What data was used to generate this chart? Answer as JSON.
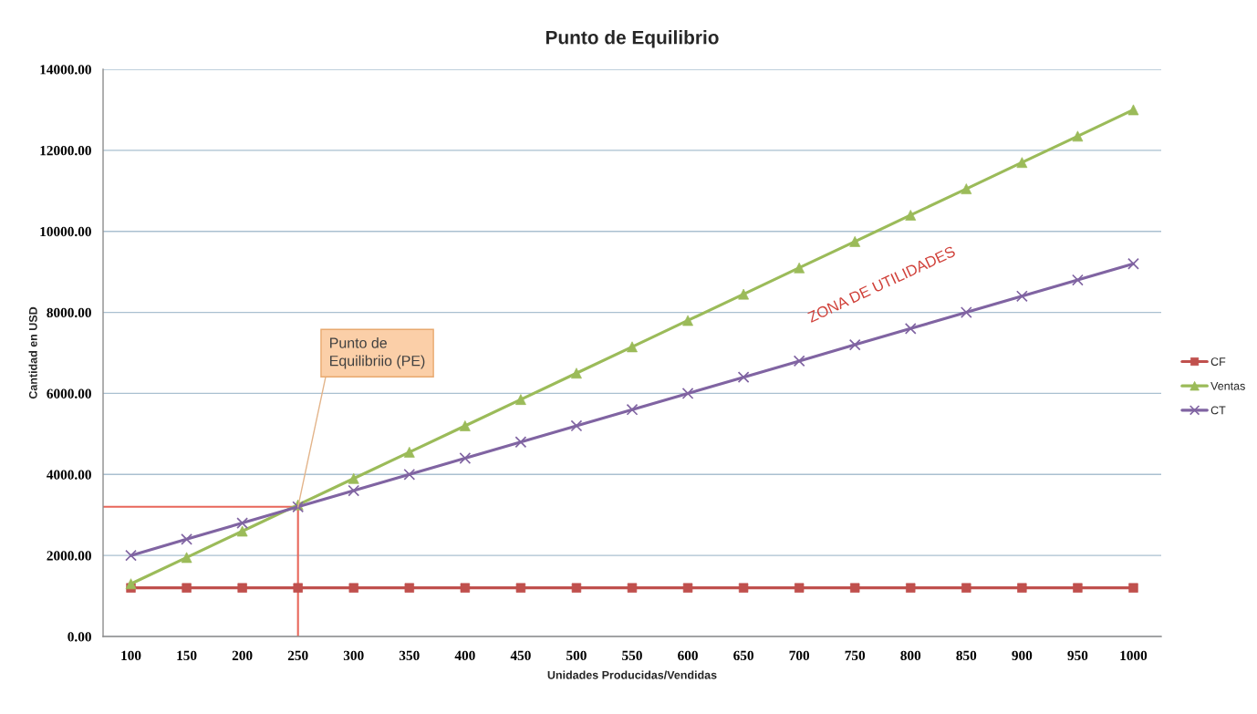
{
  "chart_data": {
    "type": "line",
    "title": "Punto de Equilibrio",
    "xlabel": "Unidades Producidas/Vendidas",
    "ylabel": "Cantidad en USD",
    "categories": [
      "100",
      "150",
      "200",
      "250",
      "300",
      "350",
      "400",
      "450",
      "500",
      "550",
      "600",
      "650",
      "700",
      "750",
      "800",
      "850",
      "900",
      "950",
      "1000"
    ],
    "series": [
      {
        "name": "CF",
        "color": "#c0504d",
        "marker": "square",
        "values": [
          1200,
          1200,
          1200,
          1200,
          1200,
          1200,
          1200,
          1200,
          1200,
          1200,
          1200,
          1200,
          1200,
          1200,
          1200,
          1200,
          1200,
          1200,
          1200
        ]
      },
      {
        "name": "Ventas",
        "color": "#9bbb59",
        "marker": "triangle",
        "values": [
          1300,
          1950,
          2600,
          3250,
          3900,
          4550,
          5200,
          5850,
          6500,
          7150,
          7800,
          8450,
          9100,
          9750,
          10400,
          11050,
          11700,
          12350,
          13000
        ]
      },
      {
        "name": "CT",
        "color": "#8064a2",
        "marker": "cross",
        "values": [
          2000,
          2400,
          2800,
          3200,
          3600,
          4000,
          4400,
          4800,
          5200,
          5600,
          6000,
          6400,
          6800,
          7200,
          7600,
          8000,
          8400,
          8800,
          9200
        ]
      }
    ],
    "ylim": [
      0,
      14000
    ],
    "yticks": [
      {
        "value": 0,
        "label": "0.00"
      },
      {
        "value": 2000,
        "label": "2000.00"
      },
      {
        "value": 4000,
        "label": "4000.00"
      },
      {
        "value": 6000,
        "label": "6000.00"
      },
      {
        "value": 8000,
        "label": "8000.00"
      },
      {
        "value": 10000,
        "label": "10000.00"
      },
      {
        "value": 12000,
        "label": "12000.00"
      },
      {
        "value": 14000,
        "label": "14000.00"
      }
    ],
    "grid": "y",
    "legend": "right",
    "line_style": "solid",
    "ref_lines": [
      {
        "axis": "y",
        "value": 3200,
        "color": "#e8665a"
      },
      {
        "axis": "x",
        "value": "250",
        "color": "#e8665a"
      }
    ],
    "annotations": [
      {
        "text": "Punto de\nEquilibriio (PE)",
        "x": "250",
        "y": 3200
      },
      "ZONA DE UTILIDADES"
    ]
  }
}
